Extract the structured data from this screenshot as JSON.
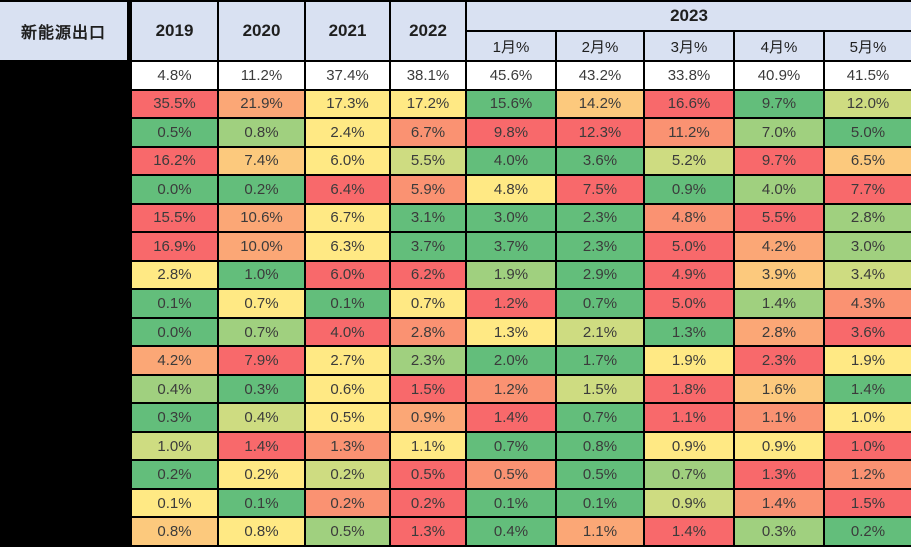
{
  "table": {
    "title": "新能源出口",
    "years": [
      "2019",
      "2020",
      "2021",
      "2022"
    ],
    "year_group": "2023",
    "months": [
      "1月%",
      "2月%",
      "3月%",
      "4月%",
      "5月%"
    ]
  },
  "colors": {
    "header_bg": "#D9E1F2",
    "grid_line": "#000000",
    "value_text": "#3b3b3b",
    "header_text": "#1f1f1f",
    "palette": {
      "W": "#FFFFFF",
      "R": "#F8696B",
      "SO": "#FA9272",
      "O": "#FBA776",
      "OY": "#FCC97D",
      "Y": "#FFE984",
      "YG": "#CEDC81",
      "LG": "#A0D07F",
      "G": "#63BE7B"
    }
  },
  "chart_data": {
    "type": "heatmap",
    "title": "新能源出口",
    "unit": "percent",
    "columns": [
      "2019",
      "2020",
      "2021",
      "2022",
      "2023 1月%",
      "2023 2月%",
      "2023 3月%",
      "2023 4月%",
      "2023 5月%"
    ],
    "legend_note": "cell fill = red-yellow-green conditional formatting scale",
    "rows": [
      {
        "values": [
          "4.8%",
          "11.2%",
          "37.4%",
          "38.1%",
          "45.6%",
          "43.2%",
          "33.8%",
          "40.9%",
          "41.5%"
        ],
        "colors": [
          "W",
          "W",
          "W",
          "W",
          "W",
          "W",
          "W",
          "W",
          "W"
        ]
      },
      {
        "values": [
          "35.5%",
          "21.9%",
          "17.3%",
          "17.2%",
          "15.6%",
          "14.2%",
          "16.6%",
          "9.7%",
          "12.0%"
        ],
        "colors": [
          "R",
          "O",
          "Y",
          "Y",
          "G",
          "OY",
          "R",
          "G",
          "YG"
        ]
      },
      {
        "values": [
          "0.5%",
          "0.8%",
          "2.4%",
          "6.7%",
          "9.8%",
          "12.3%",
          "11.2%",
          "7.0%",
          "5.0%"
        ],
        "colors": [
          "G",
          "LG",
          "Y",
          "SO",
          "R",
          "R",
          "SO",
          "LG",
          "G"
        ]
      },
      {
        "values": [
          "16.2%",
          "7.4%",
          "6.0%",
          "5.5%",
          "4.0%",
          "3.6%",
          "5.2%",
          "9.7%",
          "6.5%"
        ],
        "colors": [
          "R",
          "OY",
          "Y",
          "YG",
          "G",
          "G",
          "YG",
          "R",
          "OY"
        ]
      },
      {
        "values": [
          "0.0%",
          "0.2%",
          "6.4%",
          "5.9%",
          "4.8%",
          "7.5%",
          "0.9%",
          "4.0%",
          "7.7%"
        ],
        "colors": [
          "G",
          "G",
          "R",
          "SO",
          "Y",
          "R",
          "G",
          "LG",
          "R"
        ]
      },
      {
        "values": [
          "15.5%",
          "10.6%",
          "6.7%",
          "3.1%",
          "3.0%",
          "2.3%",
          "4.8%",
          "5.5%",
          "2.8%"
        ],
        "colors": [
          "R",
          "O",
          "Y",
          "G",
          "G",
          "G",
          "SO",
          "R",
          "LG"
        ]
      },
      {
        "values": [
          "16.9%",
          "10.0%",
          "6.3%",
          "3.7%",
          "3.7%",
          "2.3%",
          "5.0%",
          "4.2%",
          "3.0%"
        ],
        "colors": [
          "R",
          "O",
          "Y",
          "G",
          "G",
          "G",
          "R",
          "O",
          "LG"
        ]
      },
      {
        "values": [
          "2.8%",
          "1.0%",
          "6.0%",
          "6.2%",
          "1.9%",
          "2.9%",
          "4.9%",
          "3.9%",
          "3.4%"
        ],
        "colors": [
          "Y",
          "G",
          "R",
          "R",
          "LG",
          "G",
          "R",
          "OY",
          "YG"
        ]
      },
      {
        "values": [
          "0.1%",
          "0.7%",
          "0.1%",
          "0.7%",
          "1.2%",
          "0.7%",
          "5.0%",
          "1.4%",
          "4.3%"
        ],
        "colors": [
          "G",
          "Y",
          "G",
          "Y",
          "R",
          "G",
          "R",
          "LG",
          "SO"
        ]
      },
      {
        "values": [
          "0.0%",
          "0.7%",
          "4.0%",
          "2.8%",
          "1.3%",
          "2.1%",
          "1.3%",
          "2.8%",
          "3.6%"
        ],
        "colors": [
          "G",
          "LG",
          "R",
          "SO",
          "Y",
          "YG",
          "G",
          "O",
          "R"
        ]
      },
      {
        "values": [
          "4.2%",
          "7.9%",
          "2.7%",
          "2.3%",
          "2.0%",
          "1.7%",
          "1.9%",
          "2.3%",
          "1.9%"
        ],
        "colors": [
          "O",
          "R",
          "Y",
          "LG",
          "G",
          "G",
          "Y",
          "R",
          "Y"
        ]
      },
      {
        "values": [
          "0.4%",
          "0.3%",
          "0.6%",
          "1.5%",
          "1.2%",
          "1.5%",
          "1.8%",
          "1.6%",
          "1.4%"
        ],
        "colors": [
          "LG",
          "G",
          "Y",
          "R",
          "SO",
          "YG",
          "R",
          "OY",
          "G"
        ]
      },
      {
        "values": [
          "0.3%",
          "0.4%",
          "0.5%",
          "0.9%",
          "1.4%",
          "0.7%",
          "1.1%",
          "1.1%",
          "1.0%"
        ],
        "colors": [
          "G",
          "YG",
          "Y",
          "O",
          "R",
          "G",
          "R",
          "SO",
          "Y"
        ]
      },
      {
        "values": [
          "1.0%",
          "1.4%",
          "1.3%",
          "1.1%",
          "0.7%",
          "0.8%",
          "0.9%",
          "0.9%",
          "1.0%"
        ],
        "colors": [
          "YG",
          "R",
          "SO",
          "Y",
          "G",
          "G",
          "Y",
          "Y",
          "R"
        ]
      },
      {
        "values": [
          "0.2%",
          "0.2%",
          "0.2%",
          "0.5%",
          "0.5%",
          "0.5%",
          "0.7%",
          "1.3%",
          "1.2%"
        ],
        "colors": [
          "G",
          "Y",
          "YG",
          "R",
          "SO",
          "G",
          "LG",
          "R",
          "SO"
        ]
      },
      {
        "values": [
          "0.1%",
          "0.1%",
          "0.2%",
          "0.2%",
          "0.1%",
          "0.1%",
          "0.9%",
          "1.4%",
          "1.5%"
        ],
        "colors": [
          "Y",
          "G",
          "SO",
          "R",
          "G",
          "G",
          "YG",
          "SO",
          "R"
        ]
      },
      {
        "values": [
          "0.8%",
          "0.8%",
          "0.5%",
          "1.3%",
          "0.4%",
          "1.1%",
          "1.4%",
          "0.3%",
          "0.2%"
        ],
        "colors": [
          "OY",
          "Y",
          "LG",
          "R",
          "G",
          "O",
          "R",
          "LG",
          "G"
        ]
      }
    ]
  }
}
